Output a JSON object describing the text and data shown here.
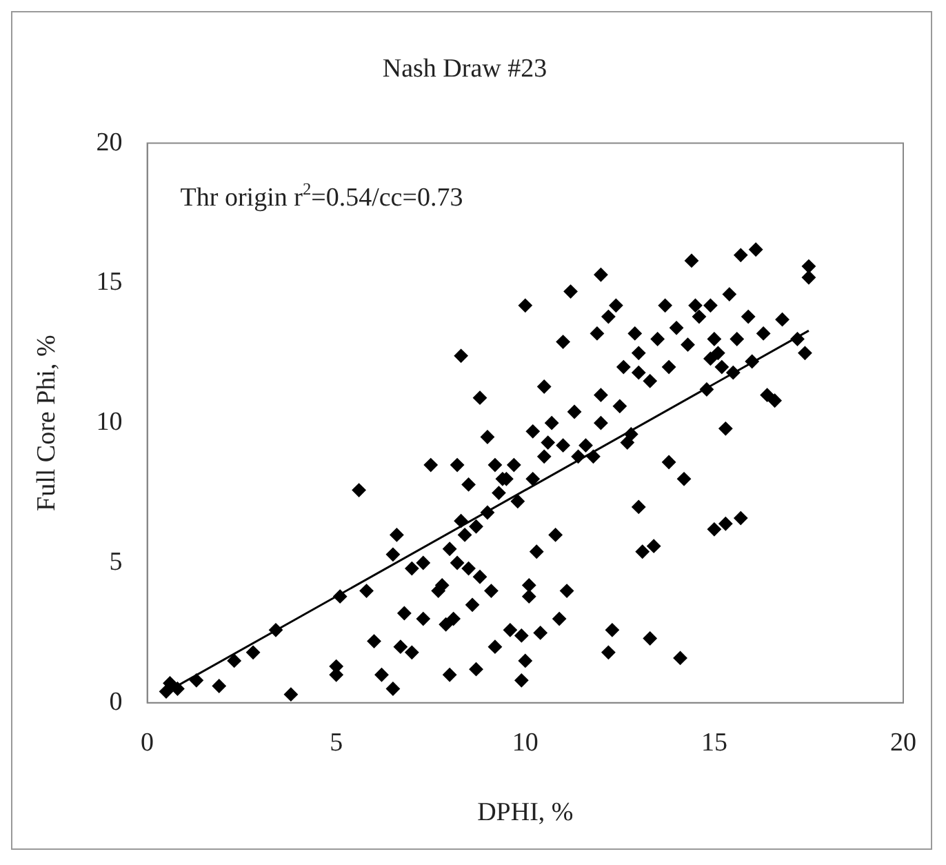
{
  "chart_data": {
    "type": "scatter",
    "title": "Nash Draw #23",
    "xlabel": "DPHI, %",
    "ylabel": "Full Core Phi, %",
    "annotations": [
      "Thr origin r$^{2}$=0.54/cc=0.73"
    ],
    "xlim": [
      0,
      20
    ],
    "ylim": [
      0,
      20
    ],
    "xticks": [
      0,
      5,
      10,
      15,
      20
    ],
    "yticks": [
      0,
      5,
      10,
      15,
      20
    ],
    "grid": false,
    "legend": false,
    "marker": "diamond",
    "series": [
      {
        "color": "#000000",
        "x": [
          0.5,
          0.6,
          0.8,
          1.3,
          1.9,
          2.3,
          2.8,
          3.4,
          3.8,
          5.0,
          5.0,
          5.1,
          5.6,
          5.8,
          6.0,
          6.2,
          6.5,
          6.6,
          6.5,
          6.7,
          6.8,
          7.0,
          7.0,
          7.3,
          7.5,
          7.8,
          7.9,
          8.0,
          8.2,
          8.3,
          8.2,
          8.4,
          8.5,
          8.6,
          8.7,
          8.8,
          8.8,
          9.0,
          9.2,
          9.2,
          9.5,
          9.6,
          9.8,
          9.9,
          10.0,
          10.0,
          10.1,
          10.2,
          10.3,
          10.4,
          10.5,
          10.5,
          10.8,
          10.9,
          11.1,
          11.0,
          11.2,
          11.3,
          11.4,
          11.6,
          11.9,
          12.0,
          12.0,
          12.2,
          12.3,
          12.4,
          12.5,
          12.7,
          12.9,
          13.0,
          13.0,
          13.1,
          13.3,
          13.4,
          13.5,
          13.8,
          13.8,
          14.0,
          14.1,
          14.2,
          14.4,
          14.3,
          14.6,
          14.8,
          15.0,
          15.1,
          15.3,
          15.3,
          15.5,
          15.7,
          15.7,
          16.1,
          16.4,
          16.6,
          16.8,
          17.2,
          17.4,
          17.5,
          17.5,
          15.6,
          14.9,
          16.0,
          15.9,
          12.8,
          11.8,
          10.7,
          9.7,
          9.3,
          9.0,
          8.7,
          8.3,
          8.0,
          7.7,
          7.3,
          9.4,
          10.2,
          11.0,
          12.0,
          12.6,
          13.3,
          13.7,
          14.5,
          15.0,
          15.2,
          16.3,
          9.1,
          8.5,
          8.1,
          9.9,
          10.1,
          10.6,
          12.2,
          13.0,
          14.9,
          15.4
        ],
        "values": [
          0.4,
          0.7,
          0.5,
          0.8,
          0.6,
          1.5,
          1.8,
          2.6,
          0.3,
          1.0,
          1.3,
          3.8,
          7.6,
          4.0,
          2.2,
          1.0,
          5.3,
          6.0,
          0.5,
          2.0,
          3.2,
          1.8,
          4.8,
          3.0,
          8.5,
          4.2,
          2.8,
          1.0,
          8.5,
          12.4,
          5.0,
          6.0,
          7.8,
          3.5,
          1.2,
          10.9,
          4.5,
          9.5,
          8.5,
          2.0,
          8.0,
          2.6,
          7.2,
          0.8,
          14.2,
          1.5,
          3.8,
          9.7,
          5.4,
          2.5,
          11.3,
          8.8,
          6.0,
          3.0,
          4.0,
          12.9,
          14.7,
          10.4,
          8.8,
          9.2,
          13.2,
          15.3,
          11.0,
          1.8,
          2.6,
          14.2,
          10.6,
          9.3,
          13.2,
          7.0,
          11.8,
          5.4,
          2.3,
          5.6,
          13.0,
          12.0,
          8.6,
          13.4,
          1.6,
          8.0,
          15.8,
          12.8,
          13.8,
          11.2,
          6.2,
          12.5,
          6.4,
          9.8,
          11.8,
          6.6,
          16.0,
          16.2,
          11.0,
          10.8,
          13.7,
          13.0,
          12.5,
          15.2,
          15.6,
          13.0,
          12.3,
          12.2,
          13.8,
          9.6,
          8.8,
          10.0,
          8.5,
          7.5,
          6.8,
          6.3,
          6.5,
          5.5,
          4.0,
          5.0,
          8.0,
          8.0,
          9.2,
          10.0,
          12.0,
          11.5,
          14.2,
          14.2,
          13.0,
          12.0,
          13.2,
          4.0,
          4.8,
          3.0,
          2.4,
          4.2,
          9.3,
          13.8,
          12.5,
          14.2,
          14.6
        ]
      },
      {
        "type": "line",
        "color": "#000000",
        "x": [
          0.5,
          17.5
        ],
        "values": [
          0.38,
          13.3
        ],
        "marker": "none",
        "line_style": "solid"
      }
    ]
  }
}
